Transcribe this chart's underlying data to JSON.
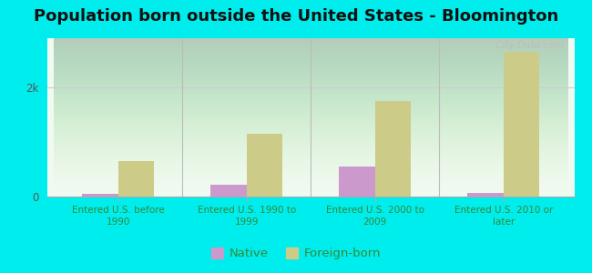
{
  "title": "Population born outside the United States - Bloomington",
  "categories": [
    "Entered U.S. before\n1990",
    "Entered U.S. 1990 to\n1999",
    "Entered U.S. 2000 to\n2009",
    "Entered U.S. 2010 or\nlater"
  ],
  "native_values": [
    55,
    220,
    550,
    70
  ],
  "foreign_values": [
    650,
    1150,
    1750,
    2650
  ],
  "native_color": "#cc99cc",
  "foreign_color": "#cccc88",
  "outer_bg": "#00eded",
  "ytick_label": "2k",
  "ytick_value": 2000,
  "ylim": [
    0,
    2900
  ],
  "bar_width": 0.28,
  "title_fontsize": 13,
  "legend_fontsize": 9.5,
  "watermark": "  City-Data.com"
}
